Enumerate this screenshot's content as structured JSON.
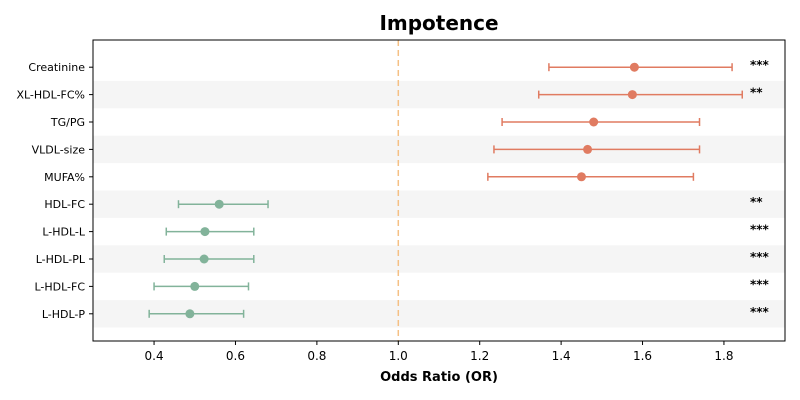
{
  "chart_data": {
    "type": "forest",
    "title": "Impotence",
    "xlabel": "Odds Ratio (OR)",
    "xlim": [
      0.25,
      1.95
    ],
    "xticks": [
      "0.4",
      "0.6",
      "0.8",
      "1.0",
      "1.2",
      "1.4",
      "1.6",
      "1.8"
    ],
    "reference_line": 1.0,
    "colors": {
      "positive": "#e07b61",
      "negative": "#82b39a",
      "reference": "#f5c084",
      "stripe": "#f5f5f5"
    },
    "rows": [
      {
        "label": "Creatinine",
        "or": 1.58,
        "lo": 1.37,
        "hi": 1.82,
        "sig": "***",
        "color": "positive"
      },
      {
        "label": "XL-HDL-FC%",
        "or": 1.575,
        "lo": 1.345,
        "hi": 1.845,
        "sig": "**",
        "color": "positive"
      },
      {
        "label": "TG/PG",
        "or": 1.48,
        "lo": 1.255,
        "hi": 1.74,
        "sig": "",
        "color": "positive"
      },
      {
        "label": "VLDL-size",
        "or": 1.465,
        "lo": 1.235,
        "hi": 1.74,
        "sig": "",
        "color": "positive"
      },
      {
        "label": "MUFA%",
        "or": 1.45,
        "lo": 1.22,
        "hi": 1.725,
        "sig": "",
        "color": "positive"
      },
      {
        "label": "HDL-FC",
        "or": 0.56,
        "lo": 0.46,
        "hi": 0.68,
        "sig": "**",
        "color": "negative"
      },
      {
        "label": "L-HDL-L",
        "or": 0.525,
        "lo": 0.43,
        "hi": 0.645,
        "sig": "***",
        "color": "negative"
      },
      {
        "label": "L-HDL-PL",
        "or": 0.523,
        "lo": 0.425,
        "hi": 0.645,
        "sig": "***",
        "color": "negative"
      },
      {
        "label": "L-HDL-FC",
        "or": 0.5,
        "lo": 0.4,
        "hi": 0.632,
        "sig": "***",
        "color": "negative"
      },
      {
        "label": "L-HDL-P",
        "or": 0.488,
        "lo": 0.388,
        "hi": 0.62,
        "sig": "***",
        "color": "negative"
      }
    ]
  }
}
